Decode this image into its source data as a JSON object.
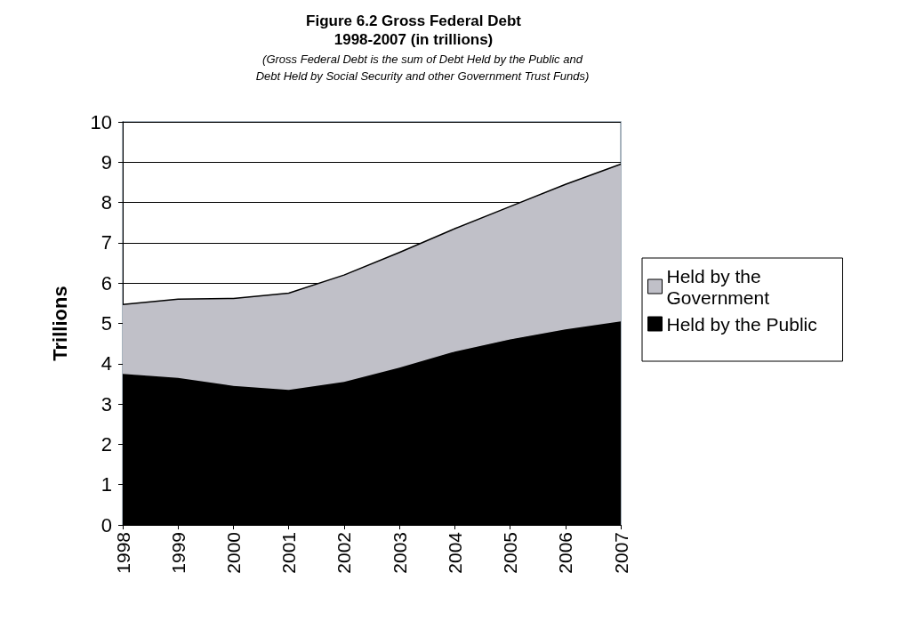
{
  "chart_data": {
    "type": "area",
    "title": "Figure 6.2 Gross Federal Debt\n1998-2007 (in trillions)",
    "subtitle": "(Gross Federal Debt is the sum of Debt Held by the Public and\nDebt Held by Social Security and other Government Trust Funds)",
    "ylabel": "Trillions",
    "categories": [
      "1998",
      "1999",
      "2000",
      "2001",
      "2002",
      "2003",
      "2004",
      "2005",
      "2006",
      "2007"
    ],
    "series": [
      {
        "name": "Held by the Public",
        "color": "#000000",
        "values": [
          3.75,
          3.65,
          3.45,
          3.35,
          3.55,
          3.9,
          4.3,
          4.6,
          4.85,
          5.05
        ]
      },
      {
        "name": "Held by the Government",
        "color": "#c0c0c8",
        "values": [
          1.72,
          1.95,
          2.17,
          2.4,
          2.65,
          2.86,
          3.05,
          3.3,
          3.6,
          3.9
        ]
      }
    ],
    "stacked": true,
    "ylim": [
      0,
      10
    ],
    "yticks": [
      0,
      1,
      2,
      3,
      4,
      5,
      6,
      7,
      8,
      9,
      10
    ],
    "grid": "y",
    "legend": "right",
    "marker": "none"
  }
}
